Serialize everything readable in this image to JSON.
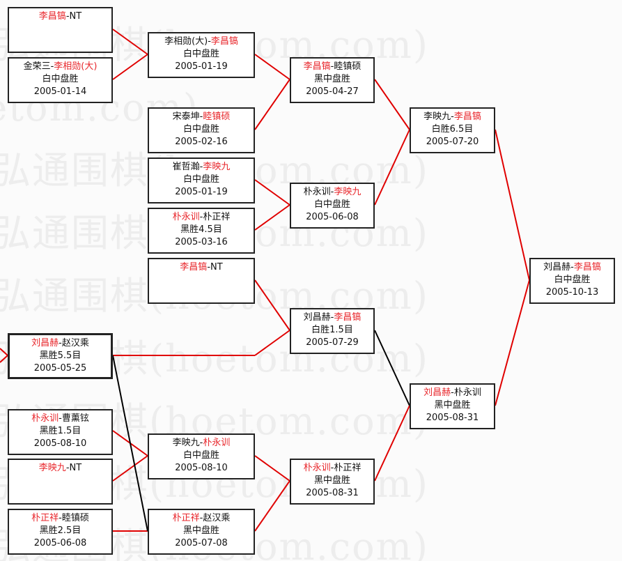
{
  "watermark": "弘通围棋(hoetom.com)",
  "colors": {
    "winner": "#e8262b",
    "line_win": "#e00000",
    "line_loss": "#000000",
    "text": "#111111"
  },
  "matches": [
    {
      "p1": "李昌镐",
      "p2": "NT",
      "winner": 1,
      "result": "",
      "date": ""
    },
    {
      "p1": "金荣三",
      "p2": "李相勋(大)",
      "winner": 2,
      "result": "白中盘胜",
      "date": "2005-01-14"
    },
    {
      "p1": "刘昌赫",
      "p2": "赵汉乘",
      "winner": 1,
      "result": "黑胜5.5目",
      "date": "2005-05-25"
    },
    {
      "p1": "朴永训",
      "p2": "曹薰铉",
      "winner": 1,
      "result": "黑胜1.5目",
      "date": "2005-08-10"
    },
    {
      "p1": "李映九",
      "p2": "NT",
      "winner": 1,
      "result": "",
      "date": ""
    },
    {
      "p1": "朴正祥",
      "p2": "睦镇硕",
      "winner": 1,
      "result": "黑胜2.5目",
      "date": "2005-06-08"
    },
    {
      "p1": "李相勋(大)",
      "p2": "李昌镐",
      "winner": 2,
      "result": "白中盘胜",
      "date": "2005-01-19"
    },
    {
      "p1": "宋泰坤",
      "p2": "睦镇硕",
      "winner": 2,
      "result": "白中盘胜",
      "date": "2005-02-16"
    },
    {
      "p1": "崔哲瀚",
      "p2": "李映九",
      "winner": 2,
      "result": "白中盘胜",
      "date": "2005-01-19"
    },
    {
      "p1": "朴永训",
      "p2": "朴正祥",
      "winner": 1,
      "result": "黑胜4.5目",
      "date": "2005-03-16"
    },
    {
      "p1": "李昌镐",
      "p2": "NT",
      "winner": 1,
      "result": "",
      "date": ""
    },
    {
      "p1": "李映九",
      "p2": "朴永训",
      "winner": 2,
      "result": "白中盘胜",
      "date": "2005-08-10"
    },
    {
      "p1": "朴正祥",
      "p2": "赵汉乘",
      "winner": 1,
      "result": "黑中盘胜",
      "date": "2005-07-08"
    },
    {
      "p1": "李昌镐",
      "p2": "睦镇硕",
      "winner": 1,
      "result": "黑中盘胜",
      "date": "2005-04-27"
    },
    {
      "p1": "朴永训",
      "p2": "李映九",
      "winner": 2,
      "result": "白中盘胜",
      "date": "2005-06-08"
    },
    {
      "p1": "刘昌赫",
      "p2": "李昌镐",
      "winner": 2,
      "result": "白胜1.5目",
      "date": "2005-07-29"
    },
    {
      "p1": "朴永训",
      "p2": "朴正祥",
      "winner": 1,
      "result": "黑中盘胜",
      "date": "2005-08-31"
    },
    {
      "p1": "李映九",
      "p2": "李昌镐",
      "winner": 2,
      "result": "白胜6.5目",
      "date": "2005-07-20"
    },
    {
      "p1": "刘昌赫",
      "p2": "朴永训",
      "winner": 1,
      "result": "黑中盘胜",
      "date": "2005-08-31"
    },
    {
      "p1": "刘昌赫",
      "p2": "李昌镐",
      "winner": 2,
      "result": "白中盘胜",
      "date": "2005-10-13"
    }
  ]
}
